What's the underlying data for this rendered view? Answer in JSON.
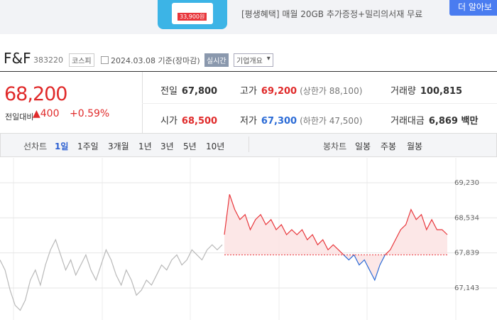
{
  "ad": {
    "price_tag": "33,900원",
    "text": "[평생혜택] 매월 20GB 추가증정+밀리의서재 무료",
    "button": "더 알아보"
  },
  "header": {
    "name": "F&F",
    "code": "383220",
    "market": "코스피",
    "date": "2024.03.08 기준(장마감)",
    "realtime": "실시간",
    "overview": "기업개요"
  },
  "price": {
    "current": "68,200",
    "change_label": "전일대비",
    "change": "▲400",
    "rate": "+0.59%"
  },
  "stats": [
    [
      {
        "label": "전일",
        "value": "67,800"
      },
      {
        "label": "고가",
        "value": "69,200",
        "note": "(상한가 88,100)"
      },
      {
        "label": "거래량",
        "value": "100,815"
      }
    ],
    [
      {
        "label": "시가",
        "value": "68,500"
      },
      {
        "label": "저가",
        "value": "67,300",
        "note": "(하한가 47,500)"
      },
      {
        "label": "거래대금",
        "value": "6,869 백만"
      }
    ]
  ],
  "tabs": {
    "line_label": "선차트",
    "line": [
      "1일",
      "1주일",
      "3개월",
      "1년",
      "3년",
      "5년",
      "10년"
    ],
    "candle_label": "봉차트",
    "candle": [
      "일봉",
      "주봉",
      "월봉"
    ]
  },
  "chart_data": {
    "type": "line",
    "series": [
      {
        "color": "#b9b9b9",
        "values": [
          67700,
          67500,
          67100,
          66800,
          66700,
          66900,
          67300,
          67500,
          67200,
          67600,
          67900,
          68100,
          67800,
          67500,
          67700,
          67400,
          67600,
          67800,
          67500,
          67300,
          67600,
          67900,
          67700,
          67400,
          67200,
          67500,
          67300,
          67000,
          67100,
          67300,
          67200,
          67400,
          67600,
          67500,
          67700,
          67800,
          67600,
          67700,
          67900,
          67800,
          67700,
          67900,
          68000,
          67900,
          68000
        ]
      },
      {
        "color": "#e8363b",
        "down_color": "#2b6bd6",
        "fill": "#fbe1e1",
        "values": [
          68200,
          69000,
          68700,
          68500,
          68600,
          68300,
          68500,
          68600,
          68400,
          68500,
          68300,
          68400,
          68200,
          68300,
          68200,
          68300,
          68100,
          68200,
          68000,
          68100,
          67900,
          68000,
          67900,
          67800,
          67700,
          67800,
          67600,
          67700,
          67500,
          67300,
          67600,
          67800,
          67900,
          68100,
          68300,
          68400,
          68700,
          68500,
          68600,
          68300,
          68500,
          68300,
          68300,
          68200
        ]
      }
    ],
    "baseline": 67800,
    "ylim": [
      66508,
      69724
    ],
    "yticks": [
      {
        "value": 69230,
        "label": "69,230"
      },
      {
        "value": 68534,
        "label": "68,534"
      },
      {
        "value": 67839,
        "label": "67,839"
      },
      {
        "value": 67143,
        "label": "67,143"
      }
    ],
    "grid": true
  }
}
